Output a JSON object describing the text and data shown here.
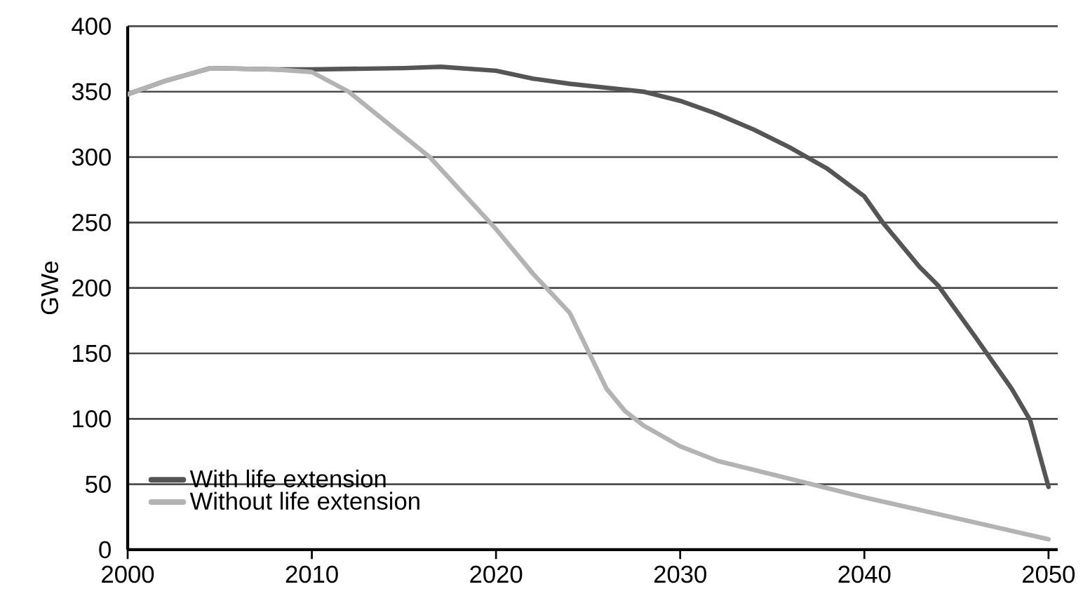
{
  "chart_data": {
    "type": "line",
    "ylabel": "GWe",
    "xlim": [
      2000,
      2050.5
    ],
    "ylim": [
      0,
      400
    ],
    "xticks": [
      2000,
      2010,
      2020,
      2030,
      2040,
      2050
    ],
    "yticks": [
      0,
      50,
      100,
      150,
      200,
      250,
      300,
      350,
      400
    ],
    "grid": "y",
    "legend": "bottom left",
    "line_style": "solid",
    "series": [
      {
        "name": "With life extension",
        "color": "#555555",
        "x": [
          2000,
          2002,
          2004.5,
          2008,
          2010,
          2015,
          2017,
          2020,
          2022,
          2024,
          2026,
          2028,
          2030,
          2032,
          2034,
          2036,
          2038,
          2040,
          2041,
          2043,
          2044,
          2046,
          2048,
          2049,
          2050
        ],
        "values": [
          348,
          358,
          368,
          367,
          367,
          368,
          369,
          366,
          360,
          356,
          353,
          350,
          343,
          333,
          321,
          307,
          291,
          270,
          250,
          216,
          202,
          163,
          123,
          99,
          48
        ]
      },
      {
        "name": "Without life extension",
        "color": "#b3b3b3",
        "x": [
          2000,
          2002,
          2004.5,
          2008,
          2010,
          2012,
          2016.4,
          2020,
          2022,
          2024,
          2025,
          2026,
          2027,
          2028,
          2030,
          2032,
          2036,
          2040,
          2045,
          2050
        ],
        "values": [
          348,
          358,
          368,
          367,
          365,
          350,
          300,
          245,
          211,
          181,
          152,
          123,
          106,
          95,
          79,
          68,
          54,
          40,
          24,
          8
        ]
      }
    ]
  }
}
